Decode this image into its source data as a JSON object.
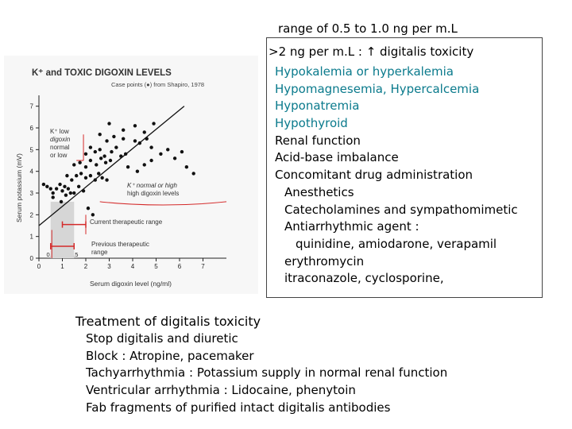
{
  "top_line": "range of 0.5 to 1.0 ng per m.L",
  "toxicity": {
    "heading": ">2 ng per m.L : ↑ digitalis toxicity",
    "items": [
      {
        "text": "Hypokalemia or hyperkalemia",
        "style": "teal"
      },
      {
        "text": "Hypomagnesemia, Hypercalcemia",
        "style": "teal"
      },
      {
        "text": "Hyponatremia",
        "style": "teal"
      },
      {
        "text": "Hypothyroid",
        "style": "teal"
      },
      {
        "text": "Renal function",
        "style": "plain"
      },
      {
        "text": "Acid-base imbalance",
        "style": "plain"
      },
      {
        "text": "Concomitant drug administration",
        "style": "plain"
      },
      {
        "text": "Anesthetics",
        "style": "l2"
      },
      {
        "text": "Catecholamines and sympathomimetic",
        "style": "l2"
      },
      {
        "text": "Antiarrhythmic agent :",
        "style": "l2"
      },
      {
        "text": "quinidine, amiodarone, verapamil",
        "style": "l3"
      },
      {
        "text": "erythromycin",
        "style": "l2"
      },
      {
        "text": "itraconazole, cyclosporine,",
        "style": "l2"
      }
    ]
  },
  "treatment": {
    "title": "Treatment of digitalis toxicity",
    "items": [
      "Stop digitalis and diuretic",
      "Block : Atropine, pacemaker",
      "Tachyarrhythmia : Potassium supply in normal renal function",
      "Ventricular arrhythmia : Lidocaine, phenytoin",
      "Fab fragments of purified intact digitalis antibodies"
    ]
  },
  "chart_data": {
    "type": "scatter",
    "title": "K⁺ and TOXIC DIGOXIN LEVELS",
    "subtitle": "Case points (●) from Shapiro, 1978",
    "xlabel": "Serum digoxin level (ng/ml)",
    "ylabel": "Serum potassium (mV)",
    "xlim": [
      0,
      8
    ],
    "ylim": [
      0,
      7.5
    ],
    "x_ticks": [
      "0",
      "1",
      "2",
      "3",
      "4",
      "5",
      "6",
      "7"
    ],
    "y_ticks": [
      "0",
      "1",
      "2",
      "3",
      "4",
      "5",
      "6",
      "7"
    ],
    "x_extra_ticks": [
      "0.5",
      "1.5"
    ],
    "annotations": {
      "low_region": [
        "K⁺ low",
        "digoxin",
        "normal",
        "or low"
      ],
      "high_region": [
        "K⁺ normal or high",
        "high digoxin levels"
      ],
      "current_range": "Current therapeutic range",
      "previous_range": [
        "Previous therapeutic",
        "range"
      ]
    },
    "current_range": [
      1.0,
      2.0
    ],
    "previous_range": [
      0.5,
      1.5
    ],
    "trend_line": [
      [
        0,
        1.5
      ],
      [
        6.2,
        7.0
      ]
    ],
    "points": [
      [
        0.2,
        3.4
      ],
      [
        0.35,
        3.3
      ],
      [
        0.5,
        3.2
      ],
      [
        0.6,
        3.0
      ],
      [
        0.75,
        3.2
      ],
      [
        0.9,
        3.4
      ],
      [
        1.0,
        3.1
      ],
      [
        1.1,
        3.3
      ],
      [
        1.25,
        3.2
      ],
      [
        1.35,
        3.0
      ],
      [
        0.6,
        2.8
      ],
      [
        0.95,
        2.6
      ],
      [
        1.15,
        2.9
      ],
      [
        1.5,
        3.0
      ],
      [
        1.7,
        3.3
      ],
      [
        1.9,
        3.1
      ],
      [
        1.2,
        3.8
      ],
      [
        1.4,
        3.6
      ],
      [
        1.6,
        3.8
      ],
      [
        1.8,
        3.9
      ],
      [
        2.0,
        3.7
      ],
      [
        2.2,
        3.8
      ],
      [
        2.4,
        3.6
      ],
      [
        2.55,
        3.9
      ],
      [
        2.7,
        3.7
      ],
      [
        2.9,
        3.6
      ],
      [
        1.5,
        4.3
      ],
      [
        1.75,
        4.4
      ],
      [
        2.0,
        4.2
      ],
      [
        2.2,
        4.5
      ],
      [
        2.45,
        4.3
      ],
      [
        2.65,
        4.6
      ],
      [
        2.85,
        4.4
      ],
      [
        3.05,
        4.5
      ],
      [
        2.0,
        4.8
      ],
      [
        2.2,
        5.1
      ],
      [
        2.4,
        4.9
      ],
      [
        2.6,
        5.0
      ],
      [
        2.8,
        4.7
      ],
      [
        3.1,
        4.9
      ],
      [
        3.3,
        5.1
      ],
      [
        3.5,
        4.7
      ],
      [
        3.7,
        4.8
      ],
      [
        2.9,
        5.4
      ],
      [
        3.2,
        5.6
      ],
      [
        3.6,
        5.5
      ],
      [
        4.1,
        5.4
      ],
      [
        4.3,
        5.3
      ],
      [
        4.6,
        5.5
      ],
      [
        4.8,
        5.1
      ],
      [
        3.8,
        4.2
      ],
      [
        4.2,
        4.0
      ],
      [
        4.5,
        4.3
      ],
      [
        4.8,
        4.5
      ],
      [
        5.2,
        4.8
      ],
      [
        5.5,
        5.0
      ],
      [
        5.8,
        4.6
      ],
      [
        6.1,
        4.9
      ],
      [
        6.3,
        4.2
      ],
      [
        6.6,
        3.9
      ],
      [
        3.0,
        6.2
      ],
      [
        3.6,
        5.9
      ],
      [
        4.1,
        6.1
      ],
      [
        4.5,
        5.8
      ],
      [
        4.9,
        6.2
      ],
      [
        2.1,
        2.3
      ],
      [
        2.3,
        2.0
      ],
      [
        2.6,
        5.7
      ]
    ]
  }
}
